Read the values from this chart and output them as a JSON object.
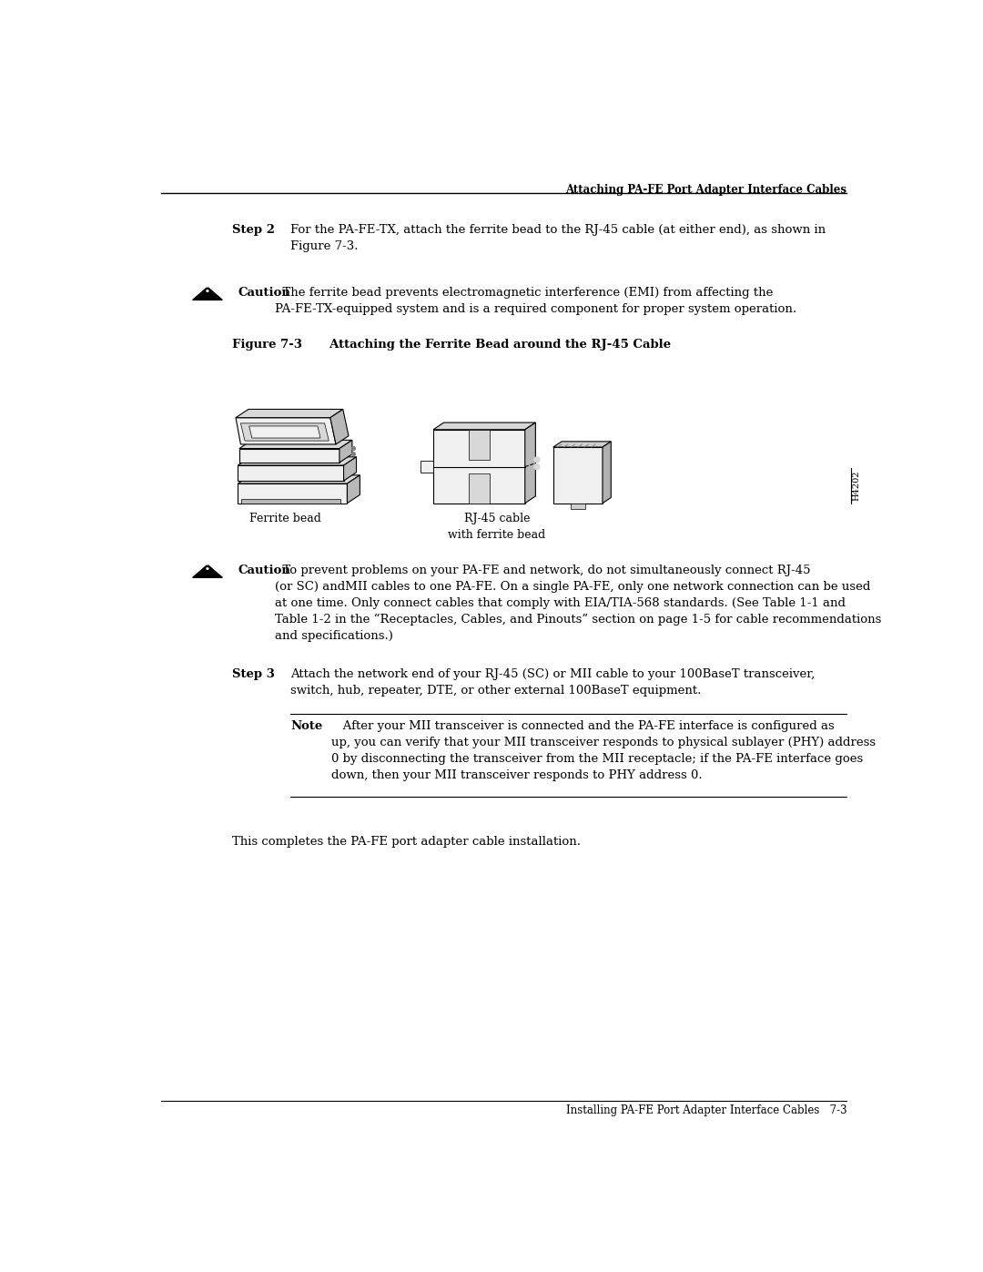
{
  "bg_color": "#ffffff",
  "header_text": "Attaching PA-FE Port Adapter Interface Cables",
  "footer_text": "Installing PA-FE Port Adapter Interface Cables   7-3",
  "step2_label": "Step 2",
  "step2_text": "For the PA-FE-TX, attach the ferrite bead to the RJ-45 cable (at either end), as shown in\nFigure 7-3.",
  "caution1_label": "Caution",
  "caution1_text": "  The ferrite bead prevents electromagnetic interference (EMI) from affecting the\nPA-FE-TX-equipped system and is a required component for proper system operation.",
  "figure_label": "Figure 7-3",
  "figure_title": "     Attaching the Ferrite Bead around the RJ-45 Cable",
  "label_ferrite": "Ferrite bead",
  "label_rj45": "RJ-45 cable\nwith ferrite bead",
  "figure_id": "H4202",
  "caution2_label": "Caution",
  "caution2_text": "  To prevent problems on your PA-FE and network, do not simultaneously connect RJ-45\n(or SC) andMII cables to one PA-FE. On a single PA-FE, only one network connection can be used\nat one time. Only connect cables that comply with EIA/TIA-568 standards. (See Table 1-1 and\nTable 1-2 in the “Receptacles, Cables, and Pinouts” section on page 1-5 for cable recommendations\nand specifications.)",
  "step3_label": "Step 3",
  "step3_text": "Attach the network end of your RJ-45 (SC) or MII cable to your 100BaseT transceiver,\nswitch, hub, repeater, DTE, or other external 100BaseT equipment.",
  "note_label": "Note",
  "note_text": "   After your MII transceiver is connected and the PA-FE interface is configured as\nup, you can verify that your MII transceiver responds to physical sublayer (PHY) address\n0 by disconnecting the transceiver from the MII receptacle; if the PA-FE interface goes\ndown, then your MII transceiver responds to PHY address 0.",
  "final_text": "This completes the PA-FE port adapter cable installation."
}
